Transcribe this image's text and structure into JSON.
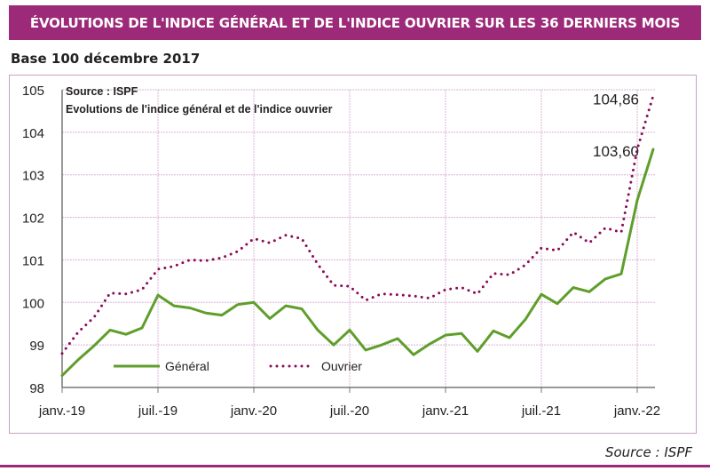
{
  "header": {
    "title": "ÉVOLUTIONS DE L'INDICE GÉNÉRAL ET DE L'INDICE OUVRIER SUR LES 36 DERNIERS MOIS",
    "subtitle": "Base 100 décembre 2017"
  },
  "footer": {
    "source": "Source : ISPF"
  },
  "colors": {
    "brand": "#9c2a78",
    "general": "#5f9e2b",
    "ouvrier": "#8b0a55",
    "grid": "#d9b3d6"
  },
  "chart_data": {
    "type": "line",
    "title": "Evolutions de l'indice général et de l'indice ouvrier",
    "annotation_source": "Source : ISPF",
    "xlabel": "",
    "ylabel": "",
    "ylim": [
      98,
      105
    ],
    "yticks": [
      "98",
      "99",
      "100",
      "101",
      "102",
      "103",
      "104",
      "105"
    ],
    "xtick_labels": [
      "janv.-19",
      "juil.-19",
      "janv.-20",
      "juil.-20",
      "janv.-21",
      "juil.-21",
      "janv.-22"
    ],
    "xtick_month_index": [
      0,
      6,
      12,
      18,
      24,
      30,
      36
    ],
    "x_months": 38,
    "grid": true,
    "legend_position": "bottom-left",
    "series": [
      {
        "name": "Général",
        "style": "solid",
        "values": [
          98.28,
          98.65,
          98.98,
          99.35,
          99.25,
          99.4,
          100.17,
          99.92,
          99.87,
          99.75,
          99.7,
          99.95,
          100.0,
          99.62,
          99.92,
          99.85,
          99.35,
          99.0,
          99.35,
          98.88,
          99.0,
          99.15,
          98.77,
          99.02,
          99.23,
          99.27,
          98.85,
          99.33,
          99.17,
          99.6,
          100.19,
          99.97,
          100.35,
          100.25,
          100.55,
          100.67,
          102.4,
          103.6
        ],
        "end_label": "103,60"
      },
      {
        "name": "Ouvrier",
        "style": "dotted",
        "values": [
          98.8,
          99.3,
          99.65,
          100.22,
          100.2,
          100.3,
          100.78,
          100.85,
          101.0,
          100.98,
          101.05,
          101.2,
          101.5,
          101.4,
          101.58,
          101.5,
          100.9,
          100.4,
          100.38,
          100.05,
          100.2,
          100.18,
          100.15,
          100.1,
          100.3,
          100.35,
          100.2,
          100.68,
          100.65,
          100.88,
          101.28,
          101.22,
          101.65,
          101.4,
          101.75,
          101.65,
          103.6,
          104.86
        ],
        "end_label": "104,86"
      }
    ]
  }
}
